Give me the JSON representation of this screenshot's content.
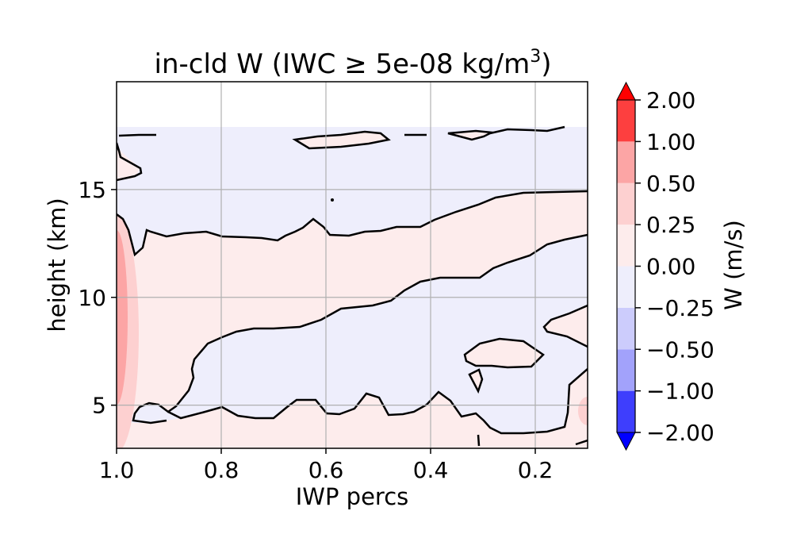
{
  "colors": {
    "pos_025": "#fdecec",
    "pos_050": "#fdd0d0",
    "pos_100": "#fca5a5",
    "pos_200": "#fd3f3f",
    "pos_over": "#ff0000",
    "neg_025": "#eeeefc",
    "neg_050": "#ccccfc",
    "neg_100": "#a2a2fb",
    "neg_200": "#3e3efd",
    "neg_under": "#0000ff",
    "contour": "#000000",
    "grid": "#b0b0b0"
  },
  "chart_data": {
    "type": "contour",
    "title": "in-cld W (IWC ≥ 5e-08 kg/m³)",
    "title_parts": {
      "main": "in-cld W (IWC ",
      "symbol": "≥",
      "value": " 5e-08 kg/m",
      "sup": "3",
      "close": ")"
    },
    "xlabel": "IWP percs",
    "ylabel": "height (km)",
    "xlim": [
      1.0,
      0.1
    ],
    "x_inverted": true,
    "ylim": [
      3,
      20
    ],
    "x_ticks": [
      1.0,
      0.8,
      0.6,
      0.4,
      0.2
    ],
    "x_tick_labels": [
      "1.0",
      "0.8",
      "0.6",
      "0.4",
      "0.2"
    ],
    "y_ticks": [
      5,
      10,
      15
    ],
    "y_tick_labels": [
      "5",
      "10",
      "15"
    ],
    "grid": true,
    "colorbar": {
      "label": "W (m/s)",
      "levels": [
        -2.0,
        -1.0,
        -0.5,
        -0.25,
        0.0,
        0.25,
        0.5,
        1.0,
        2.0
      ],
      "tick_labels": [
        "−2.00",
        "−1.00",
        "−0.50",
        "−0.25",
        "0.00",
        "0.25",
        "0.50",
        "1.00",
        "2.00"
      ],
      "extend": "both"
    },
    "contour_levels": [
      0.0
    ]
  }
}
